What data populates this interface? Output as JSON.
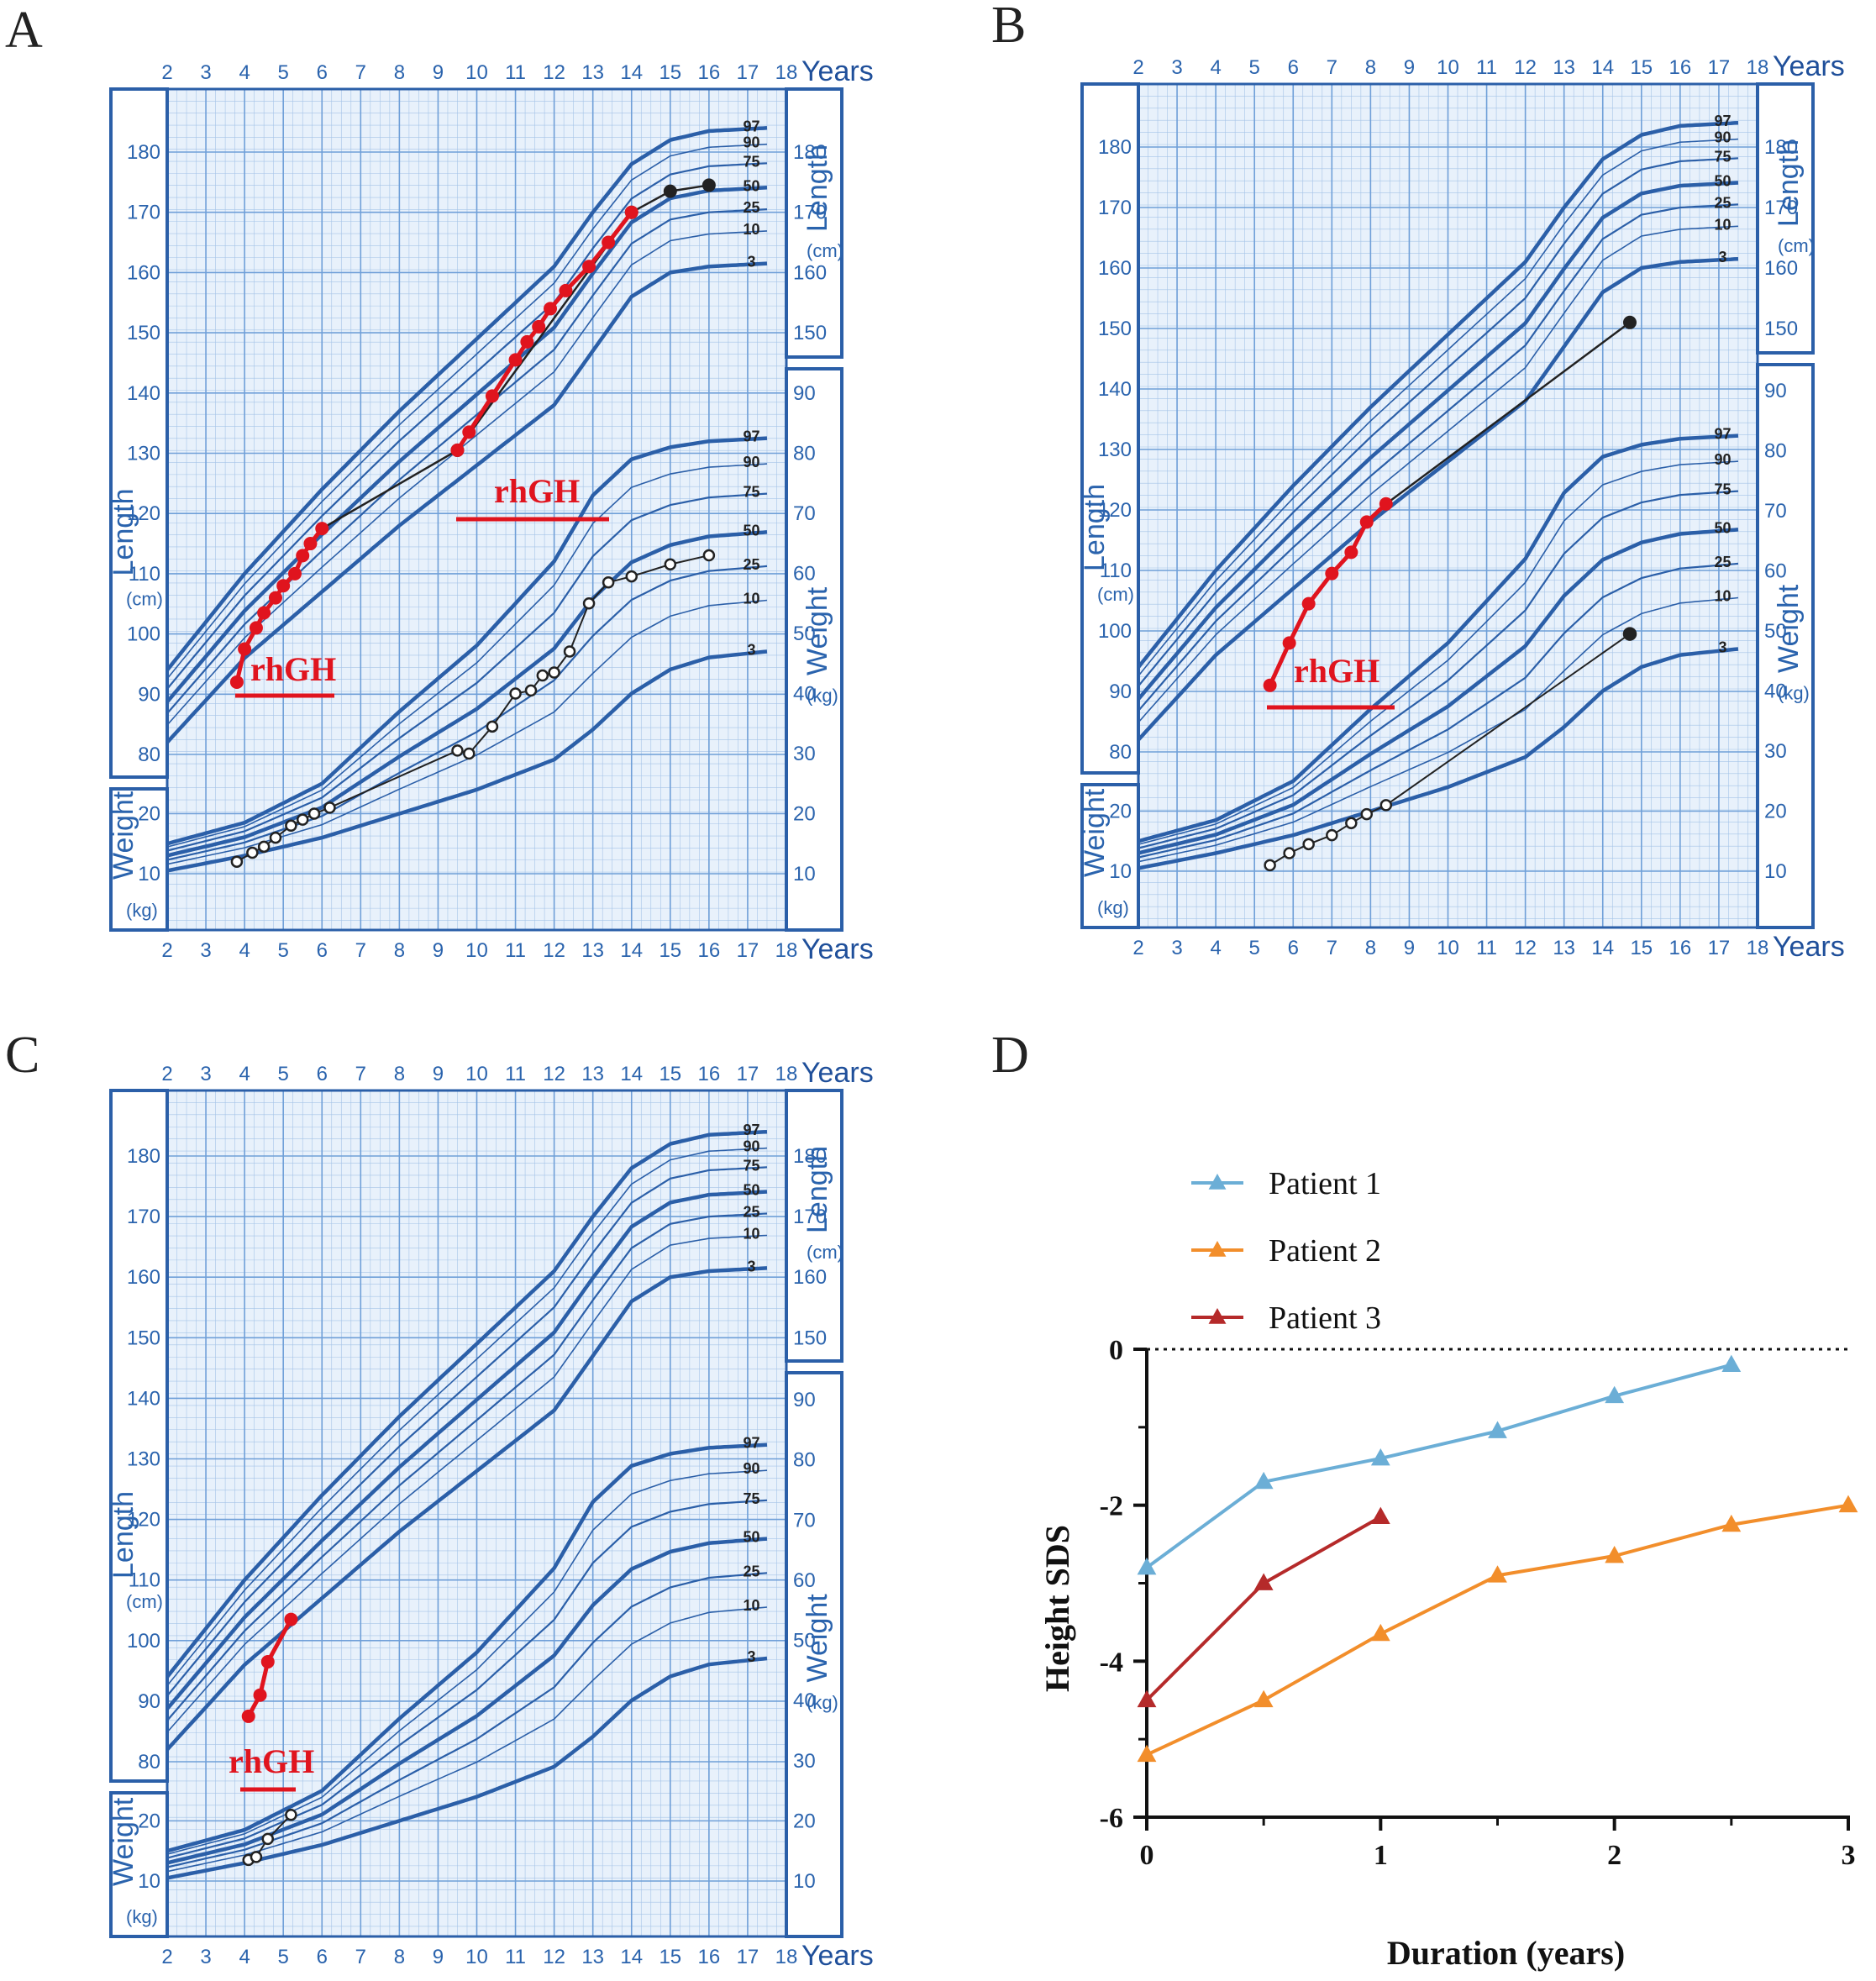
{
  "colors": {
    "chart_blue": "#2b5fa8",
    "grid_blue": "#6f9fd8",
    "treatment_red": "#e0141e",
    "pre_black": "#222222",
    "patient1": "#6baed6",
    "patient2": "#f28e2b",
    "patient3": "#b52a2a"
  },
  "chart_data": [
    {
      "type": "line",
      "panel": "A",
      "title": "A",
      "xlabel": "Years",
      "x_ticks": [
        2,
        3,
        4,
        5,
        6,
        7,
        8,
        9,
        10,
        11,
        12,
        13,
        14,
        15,
        16,
        17,
        18
      ],
      "length_axis": {
        "label": "Length",
        "unit": "(cm)",
        "left_ticks": [
          80,
          90,
          100,
          110,
          120,
          130,
          140,
          150,
          160,
          170,
          180
        ],
        "right_ticks": [
          150,
          160,
          170,
          180
        ]
      },
      "weight_axis": {
        "label": "Weight",
        "unit": "(kg)",
        "left_ticks": [
          10,
          20
        ],
        "right_ticks": [
          10,
          20,
          30,
          40,
          50,
          60,
          70,
          80,
          90
        ]
      },
      "percentile_labels": [
        "97",
        "90",
        "75",
        "50",
        "25",
        "10",
        "3"
      ],
      "treatment_label": "rhGH",
      "height_treated": [
        [
          3.8,
          92
        ],
        [
          4.0,
          97.5
        ],
        [
          4.3,
          101
        ],
        [
          4.5,
          103.5
        ],
        [
          4.8,
          106
        ],
        [
          5.0,
          108
        ],
        [
          5.3,
          110
        ],
        [
          5.5,
          113
        ],
        [
          5.7,
          115
        ],
        [
          6.0,
          117.5
        ],
        [
          9.5,
          130.5
        ],
        [
          9.8,
          133.5
        ],
        [
          10.4,
          139.5
        ],
        [
          11.0,
          145.5
        ],
        [
          11.3,
          148.5
        ],
        [
          11.6,
          151
        ],
        [
          11.9,
          154
        ],
        [
          12.3,
          157
        ],
        [
          12.9,
          161
        ],
        [
          13.4,
          165
        ],
        [
          14.0,
          170
        ]
      ],
      "height_untreated": [
        [
          6.0,
          117.5
        ],
        [
          9.5,
          130.5
        ],
        [
          14.0,
          170
        ],
        [
          15.0,
          173.5
        ],
        [
          16.0,
          174.5
        ]
      ],
      "weight": [
        [
          3.8,
          12
        ],
        [
          4.2,
          13.5
        ],
        [
          4.5,
          14.5
        ],
        [
          4.8,
          16
        ],
        [
          5.2,
          18
        ],
        [
          5.5,
          19
        ],
        [
          5.8,
          20
        ],
        [
          6.2,
          21
        ],
        [
          9.5,
          30.5
        ],
        [
          9.8,
          30
        ],
        [
          10.4,
          34.5
        ],
        [
          11.0,
          40
        ],
        [
          11.4,
          40.5
        ],
        [
          11.7,
          43
        ],
        [
          12.0,
          43.5
        ],
        [
          12.4,
          47
        ],
        [
          12.9,
          55
        ],
        [
          13.4,
          58.5
        ],
        [
          14.0,
          59.5
        ],
        [
          15.0,
          61.5
        ],
        [
          16.0,
          63
        ]
      ]
    },
    {
      "type": "line",
      "panel": "B",
      "title": "B",
      "xlabel": "Years",
      "x_ticks": [
        2,
        3,
        4,
        5,
        6,
        7,
        8,
        9,
        10,
        11,
        12,
        13,
        14,
        15,
        16,
        17,
        18
      ],
      "length_axis": {
        "label": "Length",
        "unit": "(cm)",
        "left_ticks": [
          80,
          90,
          100,
          110,
          120,
          130,
          140,
          150,
          160,
          170,
          180
        ],
        "right_ticks": [
          150,
          160,
          170,
          180
        ]
      },
      "weight_axis": {
        "label": "Weight",
        "unit": "(kg)",
        "left_ticks": [
          10,
          20
        ],
        "right_ticks": [
          10,
          20,
          30,
          40,
          50,
          60,
          70,
          80,
          90
        ]
      },
      "percentile_labels": [
        "97",
        "90",
        "75",
        "50",
        "25",
        "10",
        "3"
      ],
      "treatment_label": "rhGH",
      "height_treated": [
        [
          5.4,
          91
        ],
        [
          5.9,
          98
        ],
        [
          6.4,
          104.5
        ],
        [
          7.0,
          109.5
        ],
        [
          7.5,
          113
        ],
        [
          7.9,
          118
        ],
        [
          8.4,
          121
        ]
      ],
      "height_untreated": [
        [
          8.4,
          121
        ],
        [
          14.7,
          151
        ]
      ],
      "weight": [
        [
          5.4,
          11
        ],
        [
          5.9,
          13
        ],
        [
          6.4,
          14.5
        ],
        [
          7.0,
          16
        ],
        [
          7.5,
          18
        ],
        [
          7.9,
          19.5
        ],
        [
          8.4,
          21
        ],
        [
          14.7,
          49.5
        ]
      ]
    },
    {
      "type": "line",
      "panel": "C",
      "title": "C",
      "xlabel": "Years",
      "x_ticks": [
        2,
        3,
        4,
        5,
        6,
        7,
        8,
        9,
        10,
        11,
        12,
        13,
        14,
        15,
        16,
        17,
        18
      ],
      "length_axis": {
        "label": "Length",
        "unit": "(cm)",
        "left_ticks": [
          80,
          90,
          100,
          110,
          120,
          130,
          140,
          150,
          160,
          170,
          180
        ],
        "right_ticks": [
          150,
          160,
          170,
          180
        ]
      },
      "weight_axis": {
        "label": "Weight",
        "unit": "(kg)",
        "left_ticks": [
          10,
          20
        ],
        "right_ticks": [
          10,
          20,
          30,
          40,
          50,
          60,
          70,
          80,
          90
        ]
      },
      "percentile_labels": [
        "97",
        "90",
        "75",
        "50",
        "25",
        "10",
        "3"
      ],
      "treatment_label": "rhGH",
      "height_treated": [
        [
          4.1,
          87.5
        ],
        [
          4.4,
          91
        ],
        [
          4.6,
          96.5
        ],
        [
          5.2,
          103.5
        ]
      ],
      "height_untreated": [],
      "weight": [
        [
          4.1,
          13.5
        ],
        [
          4.3,
          14
        ],
        [
          4.6,
          17
        ],
        [
          5.2,
          21
        ]
      ]
    },
    {
      "type": "line",
      "panel": "D",
      "title": "D",
      "xlabel": "Duration (years)",
      "ylabel": "Height SDS",
      "xlim": [
        0,
        3
      ],
      "ylim": [
        -6,
        0
      ],
      "x_ticks": [
        "0",
        "1",
        "2",
        "3"
      ],
      "y_ticks": [
        "0",
        "-2",
        "-4",
        "-6"
      ],
      "reference_line": 0,
      "series": [
        {
          "name": "Patient 1",
          "x": [
            0,
            0.5,
            1,
            1.5,
            2,
            2.5
          ],
          "values": [
            -2.8,
            -1.7,
            -1.4,
            -1.05,
            -0.6,
            -0.2
          ]
        },
        {
          "name": "Patient 2",
          "x": [
            0,
            0.5,
            1,
            1.5,
            2,
            2.5,
            3
          ],
          "values": [
            -5.2,
            -4.5,
            -3.65,
            -2.9,
            -2.65,
            -2.25,
            -2.0
          ]
        },
        {
          "name": "Patient 3",
          "x": [
            0,
            0.5,
            1
          ],
          "values": [
            -4.5,
            -3.0,
            -2.15
          ]
        }
      ]
    }
  ]
}
